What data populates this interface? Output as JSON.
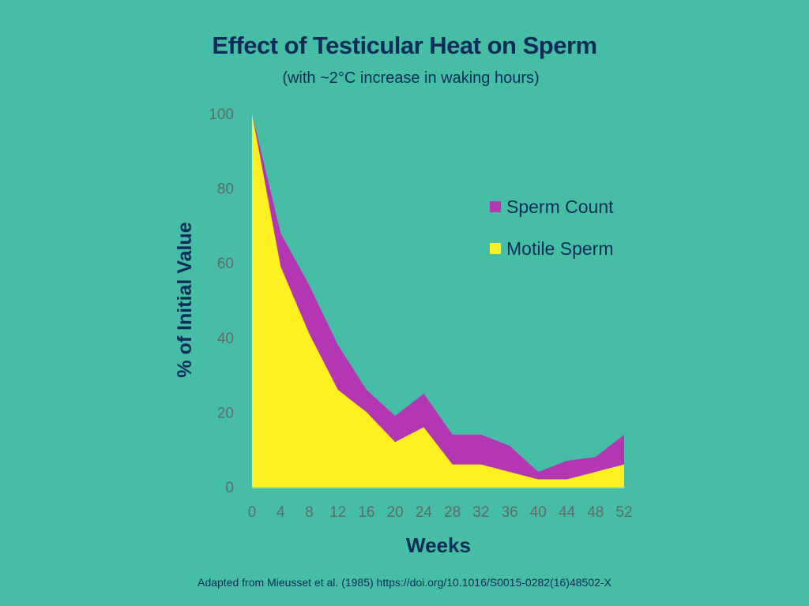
{
  "chart_data": {
    "type": "area",
    "title": "Effect of Testicular Heat on Sperm",
    "subtitle": "(with ~2°C increase in waking hours)",
    "xlabel": "Weeks",
    "ylabel": "% of Initial Value",
    "x": [
      0,
      4,
      8,
      12,
      16,
      20,
      24,
      28,
      32,
      36,
      40,
      44,
      48,
      52
    ],
    "x_ticks": [
      "0",
      "4",
      "8",
      "12",
      "16",
      "20",
      "24",
      "28",
      "32",
      "36",
      "40",
      "44",
      "48",
      "52"
    ],
    "y_ticks": [
      "0",
      "20",
      "40",
      "60",
      "80",
      "100"
    ],
    "xlim": [
      0,
      52
    ],
    "ylim": [
      0,
      100
    ],
    "grid": false,
    "legend_position": "right",
    "series": [
      {
        "name": "Sperm Count",
        "color": "#b337b3",
        "values": [
          100,
          68,
          54,
          38,
          26,
          19,
          25,
          14,
          14,
          11,
          4,
          7,
          8,
          14
        ]
      },
      {
        "name": "Motile Sperm",
        "color": "#fdf021",
        "values": [
          100,
          59,
          41,
          26,
          20,
          12,
          16,
          6,
          6,
          4,
          2,
          2,
          4,
          6
        ]
      }
    ],
    "source": "Adapted from Mieusset et al. (1985) https://doi.org/10.1016/S0015-0282(16)48502-X"
  }
}
